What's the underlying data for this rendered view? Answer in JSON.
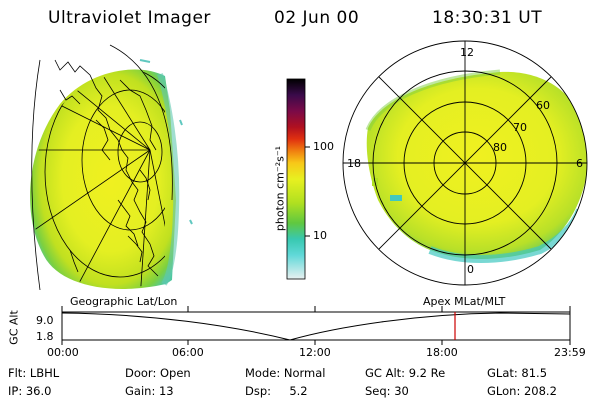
{
  "header": {
    "title": "Ultraviolet Imager",
    "date": "02 Jun 00",
    "time": "18:30:31 UT"
  },
  "colorbar": {
    "label": "photon cm⁻²s⁻¹",
    "tick_labels": [
      "100",
      "10"
    ],
    "colors": [
      "#000000",
      "#2a0a3a",
      "#5a0a4a",
      "#8a0a40",
      "#b01020",
      "#d82010",
      "#f06010",
      "#f8a010",
      "#f8d820",
      "#e8f020",
      "#c0e820",
      "#98d820",
      "#60c840",
      "#38c8b0",
      "#40d8d0",
      "#a0e8e8",
      "#e0f0f0"
    ]
  },
  "polar_plot": {
    "mlt_labels": [
      "12",
      "18",
      "6",
      "0"
    ],
    "lat_labels": [
      "60",
      "70",
      "80"
    ]
  },
  "timeline": {
    "left_label": "Geographic Lat/Lon",
    "right_label": "Apex MLat/MLT",
    "axis_label": "GC Alt",
    "y_ticks": [
      "9.0",
      "1.8"
    ],
    "x_ticks": [
      "00:00",
      "06:00",
      "12:00",
      "18:00",
      "23:59"
    ],
    "marker_color": "#cc0000"
  },
  "info": {
    "row1": [
      {
        "key": "Flt:",
        "value": "LBHL"
      },
      {
        "key": "Door:",
        "value": "Open"
      },
      {
        "key": "Mode:",
        "value": "Normal"
      },
      {
        "key": "GC Alt:",
        "value": "9.2 Re"
      },
      {
        "key": "GLat:",
        "value": "81.5"
      }
    ],
    "row2": [
      {
        "key": "IP:",
        "value": "36.0"
      },
      {
        "key": "Gain:",
        "value": "13"
      },
      {
        "key": "Dsp:",
        "value": "5.2"
      },
      {
        "key": "Seq:",
        "value": "30"
      },
      {
        "key": "GLon:",
        "value": "208.2"
      }
    ]
  }
}
